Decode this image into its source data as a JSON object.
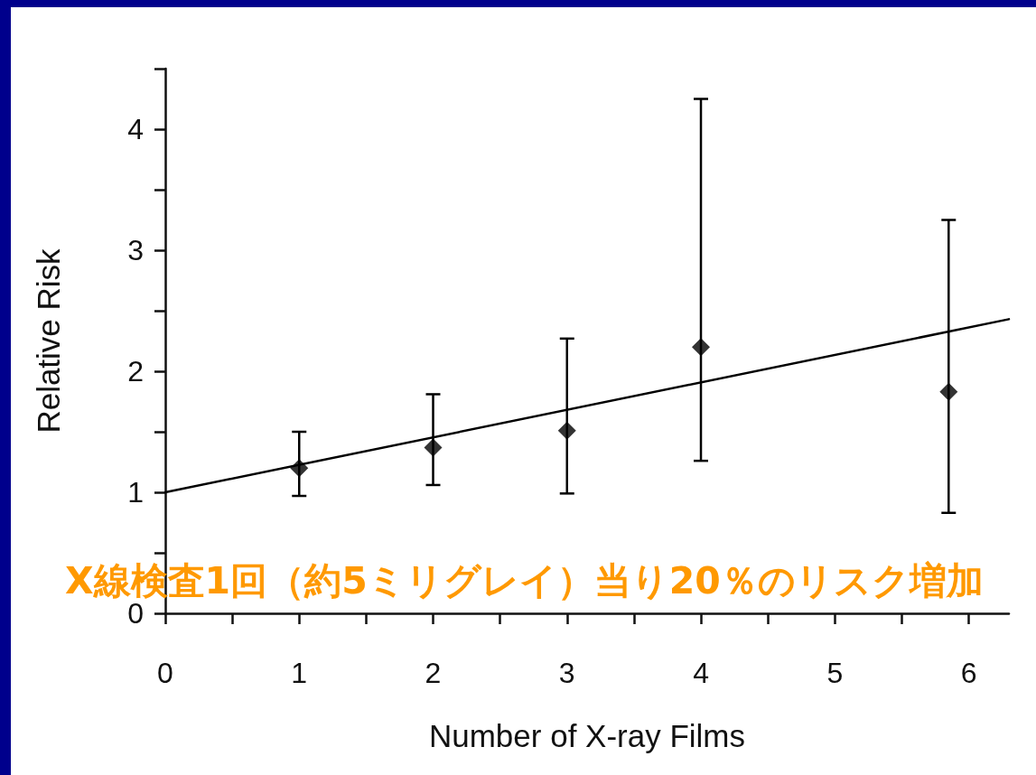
{
  "chart_data": {
    "type": "scatter",
    "xlabel": "Number of X-ray Films",
    "ylabel": "Relative Risk",
    "annotations": [
      "X線検査1回（約5ミリグレイ）当り20％のリスク増加"
    ],
    "series": [
      {
        "color": "#000000",
        "marker": "diamond",
        "x": [
          1,
          2,
          3,
          4,
          5.85
        ],
        "values": [
          1.2,
          1.37,
          1.51,
          2.2,
          1.83
        ],
        "errors": [
          [
            0.97,
            1.5
          ],
          [
            1.06,
            1.81
          ],
          [
            0.99,
            2.27
          ],
          [
            1.26,
            4.25
          ],
          [
            0.83,
            3.25
          ]
        ]
      },
      {
        "type": "line",
        "color": "#000000",
        "marker": "none",
        "x": [
          0,
          6.3
        ],
        "values": [
          1,
          2.43
        ]
      }
    ],
    "xlim": [
      0,
      6.3
    ],
    "xticks": [
      0,
      {
        "value": 0.5,
        "label": null
      },
      1,
      {
        "value": 1.5,
        "label": null
      },
      2,
      {
        "value": 2.5,
        "label": null
      },
      3,
      {
        "value": 3.5,
        "label": null
      },
      4,
      {
        "value": 4.5,
        "label": null
      },
      5,
      {
        "value": 5.5,
        "label": null
      },
      6
    ],
    "ylim": [
      0,
      4.5
    ],
    "yticks": [
      0,
      {
        "value": 0.5,
        "label": null
      },
      1,
      {
        "value": 1.5,
        "label": null
      },
      2,
      {
        "value": 2.5,
        "label": null
      },
      3,
      {
        "value": 3.5,
        "label": null
      },
      4,
      {
        "value": 4.5,
        "label": null
      }
    ]
  }
}
